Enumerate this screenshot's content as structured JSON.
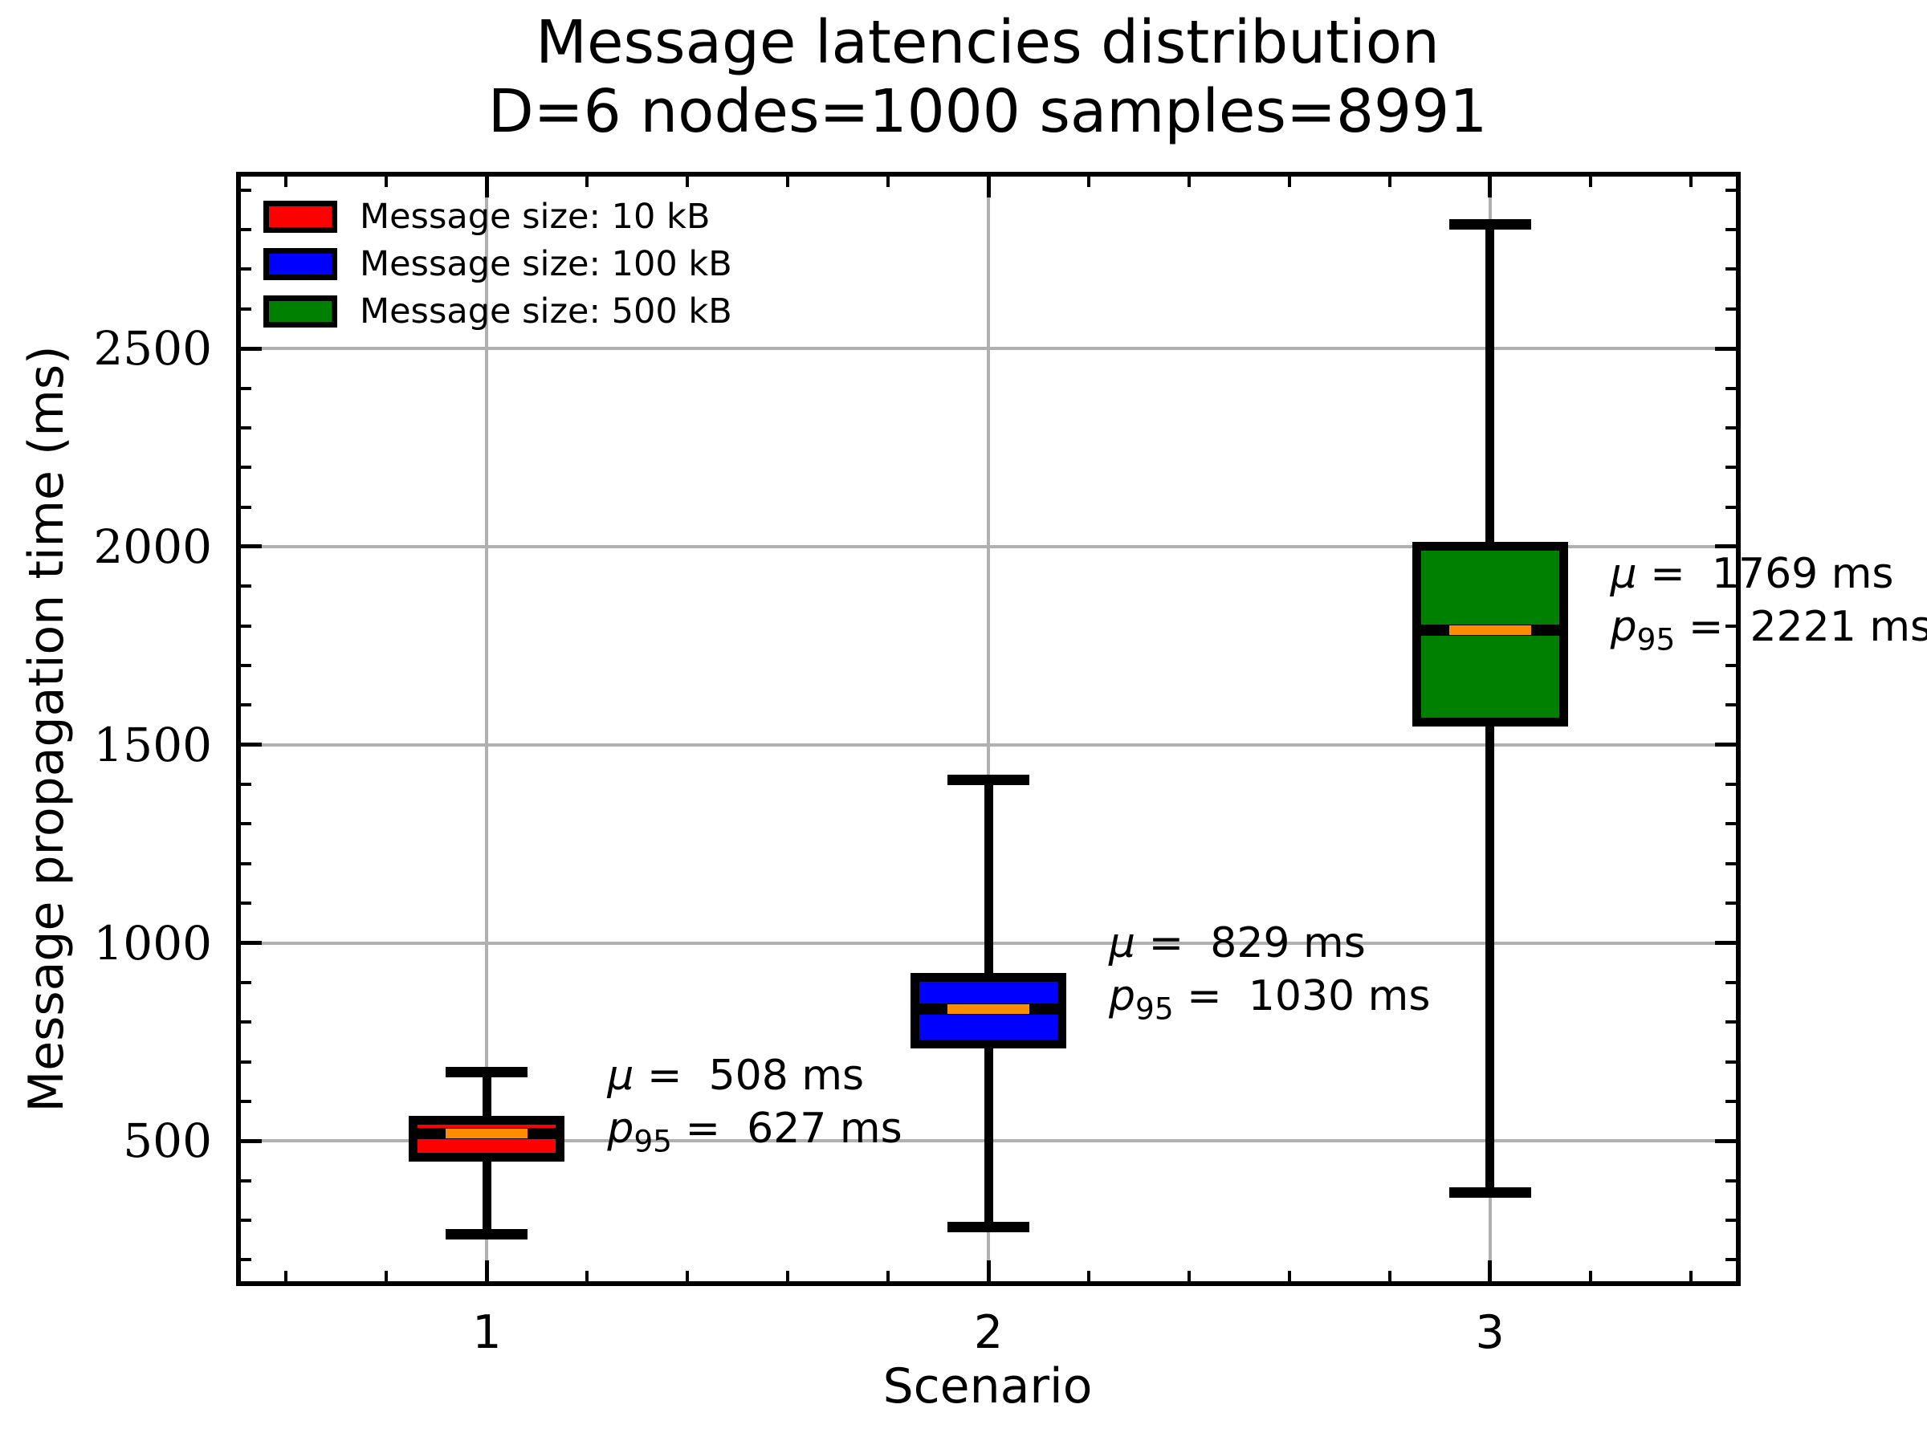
{
  "chart_data": {
    "type": "boxplot",
    "title": "Message latencies distribution",
    "subtitle": "D=6 nodes=1000 samples=8991",
    "xlabel": "Scenario",
    "ylabel": "Message propagation time (ms)",
    "unit": "ms",
    "xlim": [
      0.5,
      3.5
    ],
    "ylim": [
      134,
      2946
    ],
    "grid": true,
    "grid_color": "#b0b0b0",
    "median_color": "#ff8c00",
    "box_edge_color": "#000000",
    "y_major_ticks": [
      500,
      1000,
      1500,
      2000,
      2500
    ],
    "y_minor_ticks": [
      200,
      300,
      400,
      600,
      700,
      800,
      900,
      1100,
      1200,
      1300,
      1400,
      1600,
      1700,
      1800,
      1900,
      2100,
      2200,
      2300,
      2400,
      2600,
      2700,
      2800,
      2900
    ],
    "x_ticks": [
      {
        "pos": 1,
        "label": "1"
      },
      {
        "pos": 2,
        "label": "2"
      },
      {
        "pos": 3,
        "label": "3"
      }
    ],
    "x_minor_ticks": [
      0.6,
      0.8,
      1.2,
      1.4,
      1.6,
      1.8,
      2.2,
      2.4,
      2.6,
      2.8,
      3.2,
      3.4
    ],
    "ann_mu_symbol": "μ",
    "ann_p_symbol": "p",
    "ann_p_sub": "95",
    "boxes": [
      {
        "scenario": "1",
        "position": 1,
        "fill": "#ff0000",
        "legend_label": "Message size: 10 kB",
        "whisker_low": 264,
        "q1": 458,
        "median": 518,
        "q3": 553,
        "whisker_high": 674,
        "mean": 508,
        "p95": 627,
        "ann_y": 665
      },
      {
        "scenario": "2",
        "position": 2,
        "fill": "#0000ff",
        "legend_label": "Message size: 100 kB",
        "whisker_low": 283,
        "q1": 744,
        "median": 832,
        "q3": 914,
        "whisker_high": 1412,
        "mean": 829,
        "p95": 1030,
        "ann_y": 1000
      },
      {
        "scenario": "3",
        "position": 3,
        "fill": "#008000",
        "legend_label": "Message size: 500 kB",
        "whisker_low": 370,
        "q1": 1556,
        "median": 1790,
        "q3": 2001,
        "whisker_high": 2814,
        "mean": 1769,
        "p95": 2221,
        "ann_y": 1930
      }
    ],
    "legend": {
      "position": "upper-left",
      "items": [
        {
          "label": "Message size: 10 kB",
          "color": "#ff0000"
        },
        {
          "label": "Message size: 100 kB",
          "color": "#0000ff"
        },
        {
          "label": "Message size: 500 kB",
          "color": "#008000"
        }
      ]
    }
  }
}
